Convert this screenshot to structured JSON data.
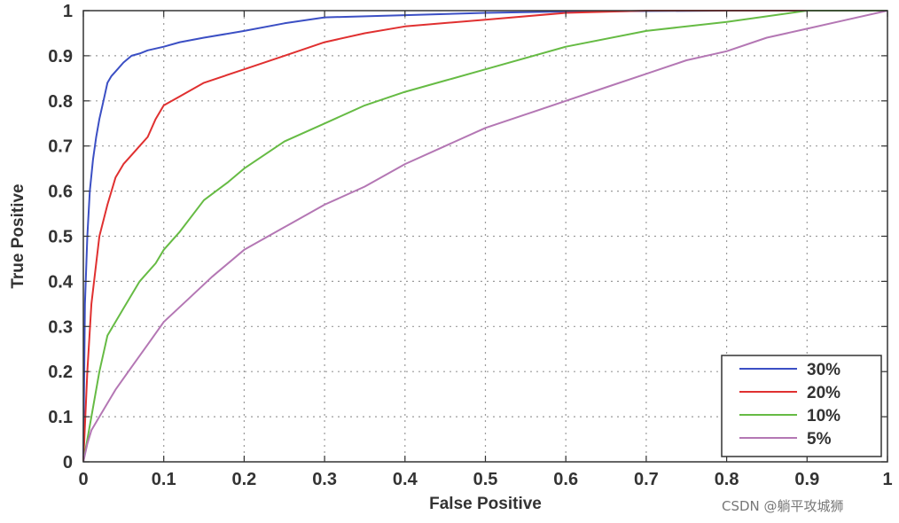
{
  "chart_data": {
    "type": "line",
    "title": "",
    "xlabel": "False Positive",
    "ylabel": "True Positive",
    "xlim": [
      0,
      1
    ],
    "ylim": [
      0,
      1
    ],
    "xticks": [
      "0",
      "0.1",
      "0.2",
      "0.3",
      "0.4",
      "0.5",
      "0.6",
      "0.7",
      "0.8",
      "0.9",
      "1"
    ],
    "yticks": [
      "0",
      "0.1",
      "0.2",
      "0.3",
      "0.4",
      "0.5",
      "0.6",
      "0.7",
      "0.8",
      "0.9",
      "1"
    ],
    "grid": true,
    "legend_position": "bottom-right",
    "series": [
      {
        "name": "30%",
        "color": "#3b4fc4",
        "x": [
          0,
          0.002,
          0.005,
          0.008,
          0.012,
          0.016,
          0.02,
          0.025,
          0.03,
          0.035,
          0.04,
          0.05,
          0.06,
          0.07,
          0.08,
          0.1,
          0.12,
          0.15,
          0.2,
          0.25,
          0.3,
          0.4,
          0.5,
          0.6,
          0.8,
          1
        ],
        "y": [
          0,
          0.35,
          0.5,
          0.6,
          0.67,
          0.72,
          0.76,
          0.8,
          0.84,
          0.855,
          0.865,
          0.885,
          0.9,
          0.905,
          0.912,
          0.92,
          0.93,
          0.94,
          0.955,
          0.972,
          0.985,
          0.99,
          0.995,
          0.998,
          1,
          1
        ]
      },
      {
        "name": "20%",
        "color": "#e03030",
        "x": [
          0,
          0.005,
          0.01,
          0.02,
          0.03,
          0.04,
          0.05,
          0.06,
          0.07,
          0.08,
          0.09,
          0.1,
          0.12,
          0.15,
          0.2,
          0.25,
          0.3,
          0.35,
          0.4,
          0.5,
          0.6,
          0.7,
          0.8,
          1
        ],
        "y": [
          0,
          0.2,
          0.35,
          0.5,
          0.57,
          0.63,
          0.66,
          0.68,
          0.7,
          0.72,
          0.76,
          0.79,
          0.81,
          0.84,
          0.87,
          0.9,
          0.93,
          0.95,
          0.965,
          0.98,
          0.995,
          1,
          1,
          1
        ]
      },
      {
        "name": "10%",
        "color": "#66bb44",
        "x": [
          0,
          0.01,
          0.02,
          0.03,
          0.05,
          0.07,
          0.09,
          0.1,
          0.12,
          0.15,
          0.18,
          0.2,
          0.25,
          0.3,
          0.35,
          0.4,
          0.45,
          0.5,
          0.6,
          0.7,
          0.8,
          0.9,
          1
        ],
        "y": [
          0,
          0.1,
          0.2,
          0.28,
          0.34,
          0.4,
          0.44,
          0.47,
          0.51,
          0.58,
          0.62,
          0.65,
          0.71,
          0.75,
          0.79,
          0.82,
          0.845,
          0.87,
          0.92,
          0.955,
          0.975,
          1,
          1
        ]
      },
      {
        "name": "5%",
        "color": "#b477b4",
        "x": [
          0,
          0.005,
          0.01,
          0.02,
          0.04,
          0.06,
          0.08,
          0.1,
          0.13,
          0.16,
          0.2,
          0.25,
          0.3,
          0.35,
          0.4,
          0.45,
          0.5,
          0.55,
          0.6,
          0.65,
          0.7,
          0.75,
          0.8,
          0.85,
          0.9,
          0.95,
          1
        ],
        "y": [
          0,
          0.04,
          0.07,
          0.1,
          0.16,
          0.21,
          0.26,
          0.31,
          0.36,
          0.41,
          0.47,
          0.52,
          0.57,
          0.61,
          0.66,
          0.7,
          0.74,
          0.77,
          0.8,
          0.83,
          0.86,
          0.89,
          0.91,
          0.94,
          0.96,
          0.98,
          1
        ]
      }
    ]
  },
  "watermark": "CSDN @躺平攻城狮"
}
